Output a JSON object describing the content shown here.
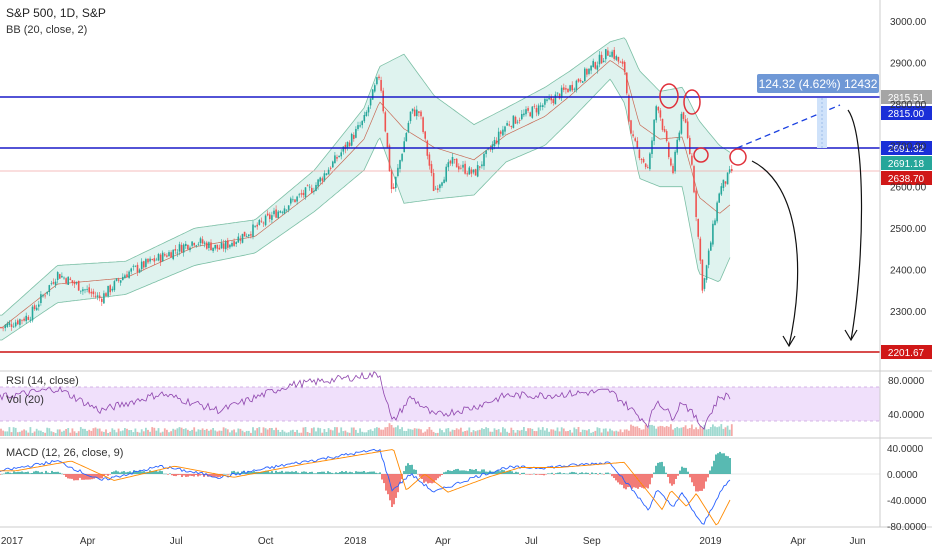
{
  "header": {
    "symbol": "S&P 500, 1D, S&P",
    "indicator": "BB (20, close, 2)"
  },
  "rsi_panel": {
    "label": "RSI (14, close)",
    "vol_label": "Vol (20)"
  },
  "macd_panel": {
    "label": "MACD (12, 26, close, 9)"
  },
  "measure_label": "124.32 (4.62%) 12432",
  "colors": {
    "up": "#26a69a",
    "down": "#ef5350",
    "hline_blue": "#1a1ac9",
    "hline_red": "#cc1111",
    "bb_fill": "#dff3ef",
    "rsi_band": "#f0e0fb",
    "measure_bg": "#6f98d6",
    "price_tag_blue": "#1a2fd8",
    "price_tag_red": "#d01717",
    "circle": "#e0303a"
  },
  "price_tags": [
    {
      "id": "tag-2815-51",
      "text": "2815.51",
      "kind": "gray"
    },
    {
      "id": "tag-2815-00",
      "text": "2815.00",
      "kind": "blue"
    },
    {
      "id": "tag-2691-32",
      "text": "2691.32",
      "kind": "blue"
    },
    {
      "id": "tag-2691-18",
      "text": "2691.18",
      "kind": "teal"
    },
    {
      "id": "tag-2638-70",
      "text": "2638.70",
      "kind": "red"
    },
    {
      "id": "tag-2201-67",
      "text": "2201.67",
      "kind": "red"
    }
  ],
  "chart_data": {
    "type": "candlestick",
    "title": "S&P 500, 1D, S&P",
    "x_ticks": [
      "2017",
      "Apr",
      "Jul",
      "Oct",
      "2018",
      "Apr",
      "Jul",
      "Sep",
      "2019",
      "Apr",
      "Jun"
    ],
    "price_axis": {
      "ticks": [
        "3000.00",
        "2900.00",
        "2800.00",
        "2700.00",
        "2600.00",
        "2500.00",
        "2400.00",
        "2300.00"
      ],
      "ylim": [
        2190,
        3030
      ]
    },
    "rsi_axis": {
      "ticks": [
        "80.0000",
        "40.0000"
      ],
      "ylim": [
        25,
        88
      ]
    },
    "macd_axis": {
      "ticks": [
        "40.0000",
        "0.0000",
        "-40.0000",
        "-80.0000"
      ],
      "ylim": [
        -88,
        45
      ]
    },
    "horizontal_levels": [
      2815.0,
      2691.32,
      2638.7,
      2201.67
    ],
    "close_path": [
      [
        "2017-01-03",
        2260
      ],
      [
        "2017-02-01",
        2290
      ],
      [
        "2017-03-01",
        2390
      ],
      [
        "2017-04-14",
        2330
      ],
      [
        "2017-05-10",
        2390
      ],
      [
        "2017-06-15",
        2430
      ],
      [
        "2017-07-20",
        2470
      ],
      [
        "2017-08-15",
        2450
      ],
      [
        "2017-09-20",
        2500
      ],
      [
        "2017-10-25",
        2560
      ],
      [
        "2017-11-20",
        2600
      ],
      [
        "2017-12-20",
        2690
      ],
      [
        "2018-01-10",
        2760
      ],
      [
        "2018-01-26",
        2872
      ],
      [
        "2018-02-08",
        2580
      ],
      [
        "2018-02-27",
        2780
      ],
      [
        "2018-03-08",
        2780
      ],
      [
        "2018-03-23",
        2590
      ],
      [
        "2018-04-10",
        2660
      ],
      [
        "2018-05-03",
        2630
      ],
      [
        "2018-06-05",
        2750
      ],
      [
        "2018-07-15",
        2800
      ],
      [
        "2018-08-10",
        2840
      ],
      [
        "2018-09-20",
        2930
      ],
      [
        "2018-10-05",
        2880
      ],
      [
        "2018-10-11",
        2720
      ],
      [
        "2018-10-29",
        2640
      ],
      [
        "2018-11-07",
        2810
      ],
      [
        "2018-11-23",
        2630
      ],
      [
        "2018-12-03",
        2790
      ],
      [
        "2018-12-13",
        2650
      ],
      [
        "2018-12-24",
        2351
      ],
      [
        "2019-01-10",
        2590
      ],
      [
        "2019-01-23",
        2638.7
      ]
    ],
    "bb_upper": [
      [
        "2017-01-03",
        2290
      ],
      [
        "2017-03-01",
        2410
      ],
      [
        "2017-05-10",
        2420
      ],
      [
        "2017-07-20",
        2500
      ],
      [
        "2017-09-20",
        2520
      ],
      [
        "2017-11-20",
        2640
      ],
      [
        "2018-01-10",
        2790
      ],
      [
        "2018-01-26",
        2890
      ],
      [
        "2018-02-20",
        2920
      ],
      [
        "2018-03-23",
        2820
      ],
      [
        "2018-05-03",
        2750
      ],
      [
        "2018-06-05",
        2790
      ],
      [
        "2018-07-15",
        2840
      ],
      [
        "2018-08-10",
        2880
      ],
      [
        "2018-09-20",
        2950
      ],
      [
        "2018-10-05",
        2960
      ],
      [
        "2018-10-20",
        2880
      ],
      [
        "2018-11-10",
        2830
      ],
      [
        "2018-12-03",
        2840
      ],
      [
        "2018-12-20",
        2760
      ],
      [
        "2019-01-10",
        2700
      ],
      [
        "2019-01-23",
        2680
      ]
    ],
    "bb_lower": [
      [
        "2017-01-03",
        2230
      ],
      [
        "2017-03-01",
        2320
      ],
      [
        "2017-05-10",
        2340
      ],
      [
        "2017-07-20",
        2410
      ],
      [
        "2017-09-20",
        2440
      ],
      [
        "2017-11-20",
        2540
      ],
      [
        "2018-01-10",
        2640
      ],
      [
        "2018-01-26",
        2720
      ],
      [
        "2018-02-20",
        2560
      ],
      [
        "2018-03-23",
        2570
      ],
      [
        "2018-05-03",
        2580
      ],
      [
        "2018-06-05",
        2660
      ],
      [
        "2018-07-15",
        2700
      ],
      [
        "2018-08-10",
        2760
      ],
      [
        "2018-09-20",
        2860
      ],
      [
        "2018-10-05",
        2800
      ],
      [
        "2018-10-20",
        2620
      ],
      [
        "2018-11-10",
        2600
      ],
      [
        "2018-12-03",
        2600
      ],
      [
        "2018-12-20",
        2390
      ],
      [
        "2019-01-10",
        2370
      ],
      [
        "2019-01-23",
        2440
      ]
    ],
    "rsi_series": [
      [
        "2017-01-03",
        60
      ],
      [
        "2017-03-01",
        70
      ],
      [
        "2017-04-14",
        44
      ],
      [
        "2017-06-15",
        64
      ],
      [
        "2017-08-15",
        44
      ],
      [
        "2017-10-25",
        74
      ],
      [
        "2018-01-26",
        87
      ],
      [
        "2018-02-08",
        30
      ],
      [
        "2018-02-27",
        60
      ],
      [
        "2018-03-23",
        38
      ],
      [
        "2018-05-03",
        48
      ],
      [
        "2018-06-05",
        62
      ],
      [
        "2018-07-15",
        62
      ],
      [
        "2018-09-20",
        67
      ],
      [
        "2018-10-29",
        28
      ],
      [
        "2018-11-07",
        57
      ],
      [
        "2018-11-23",
        36
      ],
      [
        "2018-12-03",
        56
      ],
      [
        "2018-12-24",
        24
      ],
      [
        "2019-01-10",
        60
      ],
      [
        "2019-01-23",
        62
      ]
    ],
    "macd_series": [
      [
        "2017-01-03",
        5
      ],
      [
        "2017-03-01",
        20
      ],
      [
        "2017-04-14",
        -10
      ],
      [
        "2017-06-15",
        12
      ],
      [
        "2017-08-15",
        -5
      ],
      [
        "2017-10-25",
        15
      ],
      [
        "2018-01-26",
        38
      ],
      [
        "2018-02-08",
        -25
      ],
      [
        "2018-02-27",
        0
      ],
      [
        "2018-03-23",
        -28
      ],
      [
        "2018-05-03",
        -5
      ],
      [
        "2018-06-05",
        10
      ],
      [
        "2018-07-15",
        10
      ],
      [
        "2018-09-20",
        18
      ],
      [
        "2018-10-29",
        -55
      ],
      [
        "2018-11-07",
        -25
      ],
      [
        "2018-11-23",
        -50
      ],
      [
        "2018-12-03",
        -30
      ],
      [
        "2018-12-24",
        -80
      ],
      [
        "2019-01-10",
        -30
      ],
      [
        "2019-01-23",
        -5
      ]
    ]
  }
}
